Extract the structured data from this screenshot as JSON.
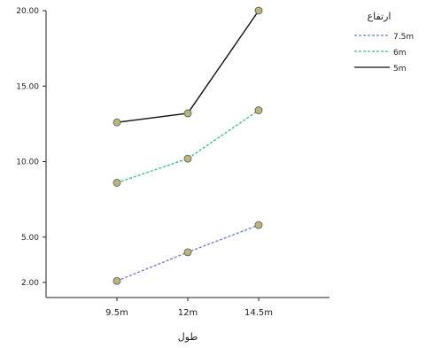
{
  "chart_data": {
    "type": "line",
    "xlabel": "طول",
    "ylabel": "",
    "categories": [
      "9.5m",
      "12m",
      "14.5m"
    ],
    "yticks": [
      2.0,
      5.0,
      10.0,
      15.0,
      20.0
    ],
    "ytick_labels": [
      "2.00",
      "5.00",
      "10.00",
      "15.00",
      "20.00"
    ],
    "ylim": [
      1.0,
      20.0
    ],
    "grid": false,
    "legend": {
      "title": "ارتفاع",
      "position": "top-right"
    },
    "series": [
      {
        "name": "7.5m",
        "color": "#6a7fd6",
        "dash": "dash",
        "values": [
          2.1,
          4.0,
          5.8
        ]
      },
      {
        "name": "6m",
        "color": "#39c47a",
        "dash": "dash",
        "values": [
          8.6,
          10.2,
          13.4
        ]
      },
      {
        "name": "5m",
        "color": "#111111",
        "dash": "solid",
        "values": [
          12.6,
          13.2,
          20.0
        ]
      }
    ],
    "marker_color": "#b9b67c"
  }
}
